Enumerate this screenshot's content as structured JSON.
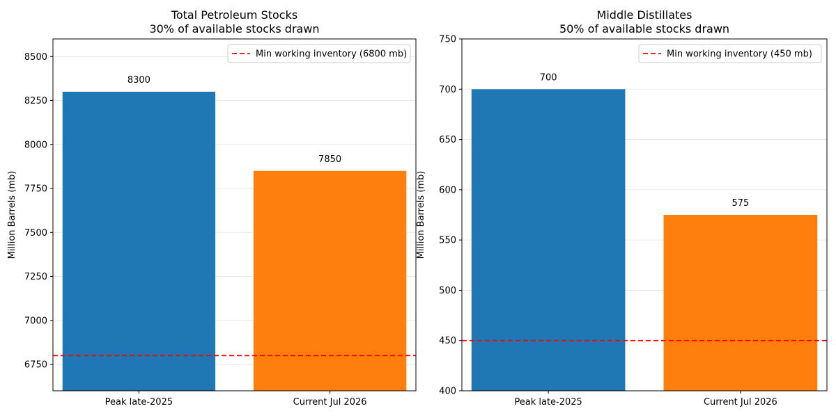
{
  "chart_data": [
    {
      "type": "bar",
      "title": "Total Petroleum Stocks",
      "subtitle": "30% of available stocks drawn",
      "xlabel": "",
      "ylabel": "Million Barrels (mb)",
      "categories": [
        "Peak late-2025",
        "Current Jul 2026"
      ],
      "values": [
        8300,
        7850
      ],
      "data_labels": [
        "8300",
        "7850"
      ],
      "colors": [
        "#1f77b4",
        "#ff7f0e"
      ],
      "ylim": [
        6600,
        8600
      ],
      "yticks": [
        6750,
        7000,
        7250,
        7500,
        7750,
        8000,
        8250,
        8500
      ],
      "grid": "y",
      "reference_line": {
        "value": 6800,
        "label": "Min working inventory (6800 mb)",
        "color": "#ff0000",
        "style": "dashed"
      },
      "legend_position": "top-right"
    },
    {
      "type": "bar",
      "title": "Middle Distillates",
      "subtitle": "50% of available stocks drawn",
      "xlabel": "",
      "ylabel": "Million Barrels (mb)",
      "categories": [
        "Peak late-2025",
        "Current Jul 2026"
      ],
      "values": [
        700,
        575
      ],
      "data_labels": [
        "700",
        "575"
      ],
      "colors": [
        "#1f77b4",
        "#ff7f0e"
      ],
      "ylim": [
        400,
        750
      ],
      "yticks": [
        400,
        450,
        500,
        550,
        600,
        650,
        700,
        750
      ],
      "grid": "y",
      "reference_line": {
        "value": 450,
        "label": "Min working inventory (450 mb)",
        "color": "#ff0000",
        "style": "dashed"
      },
      "legend_position": "top-right"
    }
  ]
}
